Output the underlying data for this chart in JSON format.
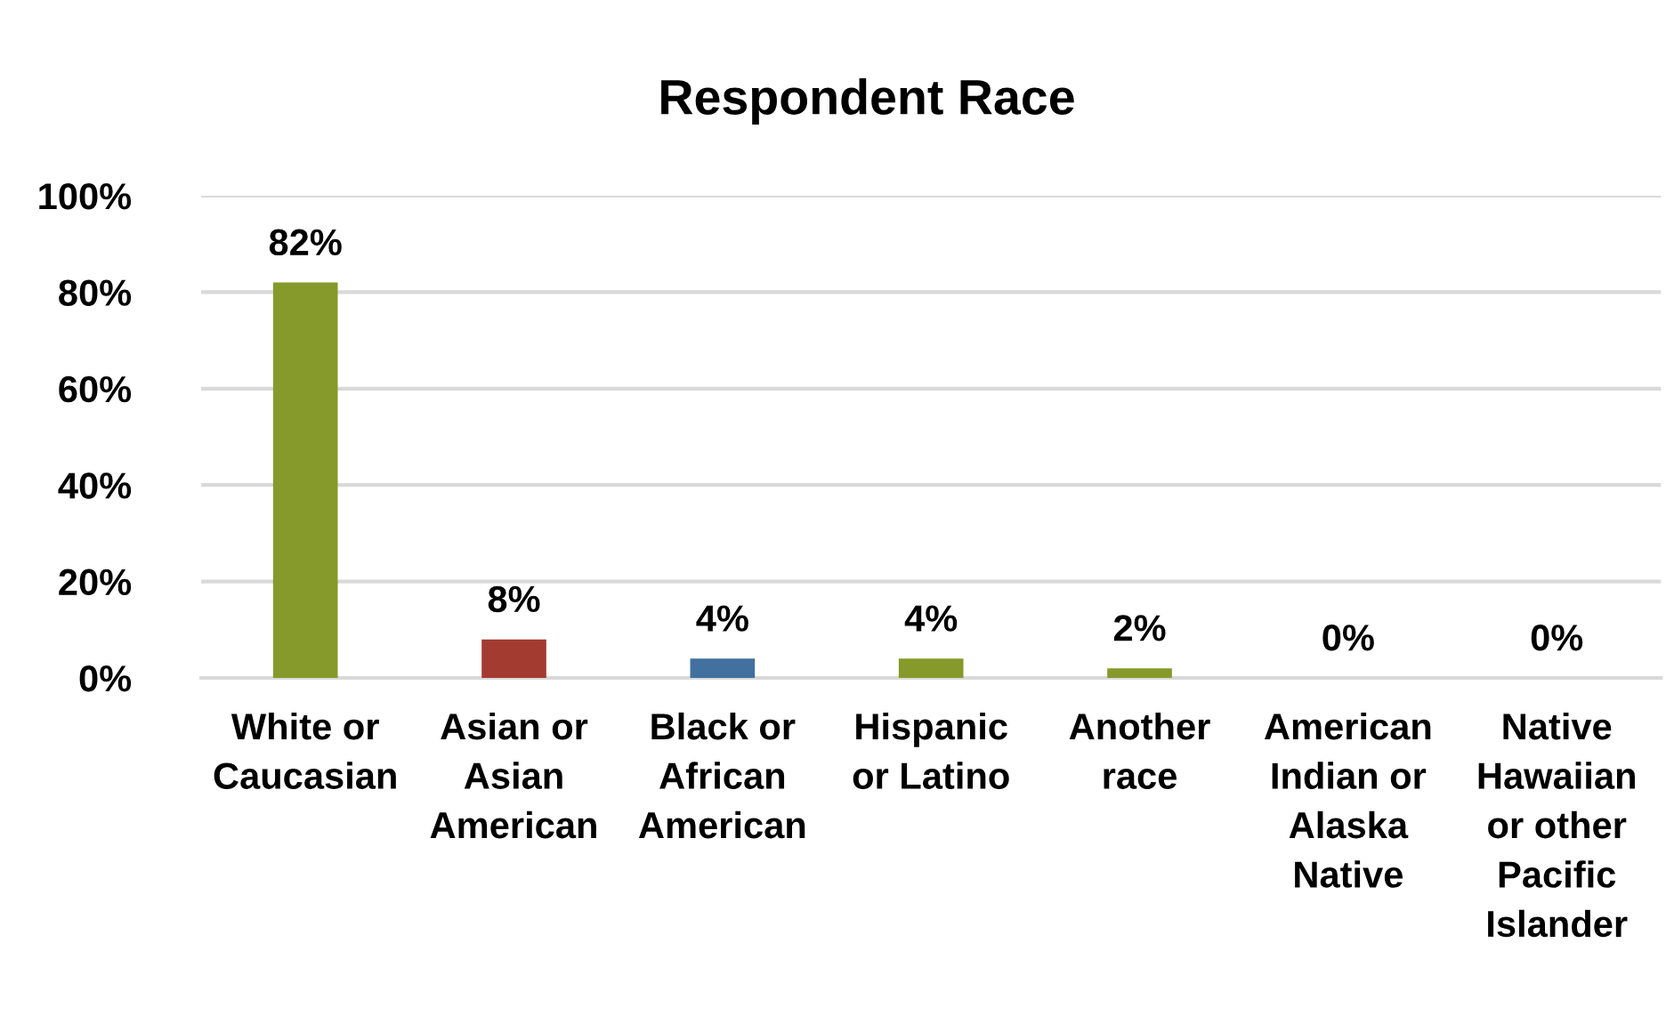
{
  "chart_data": {
    "type": "bar",
    "title": "Respondent Race",
    "categories": [
      "White or\nCaucasian",
      "Asian or\nAsian\nAmerican",
      "Black or\nAfrican\nAmerican",
      "Hispanic\nor Latino",
      "Another\nrace",
      "American\nIndian or\nAlaska\nNative",
      "Native\nHawaiian\nor other\nPacific\nIslander"
    ],
    "values": [
      82,
      8,
      4,
      4,
      2,
      0,
      0
    ],
    "colors": [
      "#86992b",
      "#a43b31",
      "#42709f",
      "#86992b",
      "#86992b",
      "#86992b",
      "#86992b"
    ],
    "value_labels": [
      "82%",
      "8%",
      "4%",
      "4%",
      "2%",
      "0%",
      "0%"
    ],
    "ylim": [
      0,
      100
    ],
    "yticks": [
      {
        "value": 0,
        "label": "0%"
      },
      {
        "value": 20,
        "label": "20%"
      },
      {
        "value": 40,
        "label": "40%"
      },
      {
        "value": 60,
        "label": "60%"
      },
      {
        "value": 80,
        "label": "80%"
      },
      {
        "value": 100,
        "label": "100%"
      }
    ],
    "grid": "y",
    "legend": false
  }
}
